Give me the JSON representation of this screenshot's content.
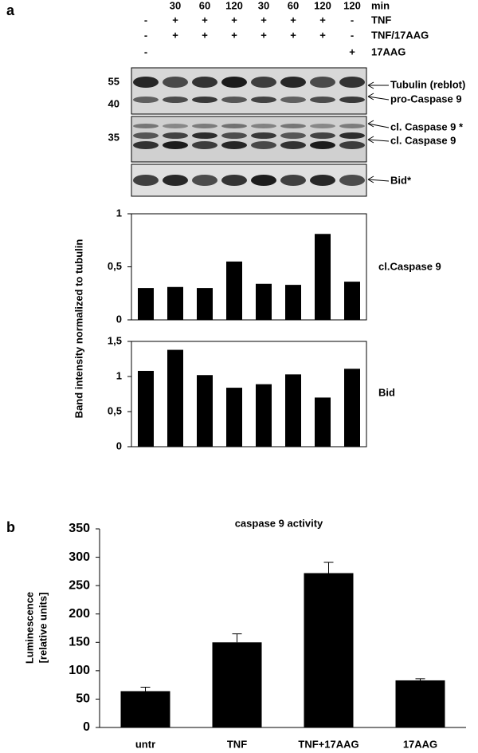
{
  "panel_labels": [
    "a",
    "b"
  ],
  "blot": {
    "header_rows": [
      {
        "label": "min",
        "values": [
          null,
          "30",
          "60",
          "120",
          "30",
          "60",
          "120",
          "120"
        ]
      },
      {
        "label": "TNF",
        "values": [
          "-",
          "+",
          "+",
          "+",
          "+",
          "+",
          "+",
          "-"
        ]
      },
      {
        "label": "TNF/17AAG",
        "values": [
          "-",
          "+",
          "+",
          "+",
          "+",
          "+",
          "+",
          "-"
        ]
      },
      {
        "label": "17AAG",
        "values": [
          "-",
          null,
          null,
          null,
          null,
          null,
          null,
          "+"
        ]
      }
    ],
    "markers": [
      "55",
      "40",
      "35"
    ],
    "bands": [
      "Tubulin (reblot)",
      "pro-Caspase 9",
      "cl. Caspase 9 *",
      "cl. Caspase 9",
      "Bid*"
    ]
  },
  "chart_data": [
    {
      "type": "bar",
      "annotation": "cl.Caspase 9",
      "ylabel": "Band intensity normalized to tubulin",
      "values": [
        0.3,
        0.31,
        0.3,
        0.55,
        0.34,
        0.33,
        0.81,
        0.36
      ],
      "color": "#000000",
      "ylim": [
        0,
        1
      ],
      "yticks": [
        0,
        {
          "value": 0.5,
          "label": "0,5"
        },
        1
      ]
    },
    {
      "type": "bar",
      "annotation": "Bid",
      "values": [
        1.08,
        1.38,
        1.02,
        0.84,
        0.89,
        1.03,
        0.7,
        1.11
      ],
      "color": "#000000",
      "ylim": [
        0,
        1.5
      ],
      "yticks": [
        0,
        {
          "value": 0.5,
          "label": "0,5"
        },
        1,
        {
          "value": 1.5,
          "label": "1,5"
        }
      ]
    },
    {
      "type": "bar",
      "title": "caspase 9 activity",
      "ylabel": [
        "Luminescence",
        "[relative units]"
      ],
      "categories": [
        "untr",
        "TNF",
        "TNF+17AAG",
        "17AAG"
      ],
      "values": [
        64,
        150,
        272,
        83
      ],
      "errors": [
        7,
        15,
        19,
        3
      ],
      "color": "#000000",
      "ylim": [
        0,
        350
      ],
      "yticks": [
        0,
        50,
        100,
        150,
        200,
        250,
        300,
        350
      ]
    }
  ]
}
